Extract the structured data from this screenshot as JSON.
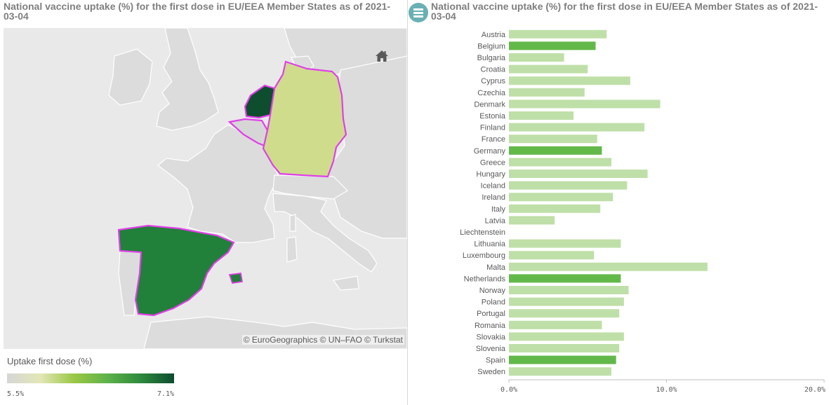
{
  "left_panel": {
    "title": "National vaccine uptake (%) for the first dose in EU/EEA Member States as of 2021-03-04",
    "attribution": "© EuroGeographics © UN–FAO © Turkstat",
    "home_icon": "home-icon",
    "legend": {
      "title": "Uptake first dose (%)",
      "min_label": "5.5%",
      "max_label": "7.1%",
      "colors": [
        "#d6d6d6",
        "#e3e7b5",
        "#9bc845",
        "#5eb24a",
        "#2e8a3c",
        "#0e4d2e"
      ]
    },
    "map_colors": {
      "land": "#dcdcdc",
      "sea": "#e9e9e9",
      "border": "#ffffff",
      "selection_outline": "#e040e8",
      "netherlands": "#0e4d2e",
      "spain": "#21803a",
      "germany": "#cfdc8c",
      "belgium": "#d6d6d6"
    }
  },
  "right_panel": {
    "title": "National vaccine uptake (%) for the first dose in EU/EEA Member States as of 2021-03-04",
    "menu_icon": "hamburger-menu-icon"
  },
  "chart_data": {
    "type": "bar",
    "orientation": "horizontal",
    "categories": [
      "Austria",
      "Belgium",
      "Bulgaria",
      "Croatia",
      "Cyprus",
      "Czechia",
      "Denmark",
      "Estonia",
      "Finland",
      "France",
      "Germany",
      "Greece",
      "Hungary",
      "Iceland",
      "Ireland",
      "Italy",
      "Latvia",
      "Liechtenstein",
      "Lithuania",
      "Luxembourg",
      "Malta",
      "Netherlands",
      "Norway",
      "Poland",
      "Portugal",
      "Romania",
      "Slovakia",
      "Slovenia",
      "Spain",
      "Sweden"
    ],
    "values": [
      6.2,
      5.5,
      3.5,
      5.0,
      7.7,
      4.8,
      9.6,
      4.1,
      8.6,
      5.6,
      5.9,
      6.5,
      8.8,
      7.5,
      6.6,
      5.8,
      2.9,
      null,
      7.1,
      5.4,
      12.6,
      7.1,
      7.6,
      7.3,
      7.0,
      5.9,
      7.3,
      7.0,
      6.8,
      6.5
    ],
    "highlighted": [
      "Belgium",
      "Germany",
      "Netherlands",
      "Spain"
    ],
    "bar_color": "#bfdfa8",
    "highlight_color": "#63b84a",
    "x_ticks": [
      "0.0%",
      "10.0%",
      "20.0%"
    ],
    "xlim": [
      0,
      20
    ],
    "grid": false
  }
}
